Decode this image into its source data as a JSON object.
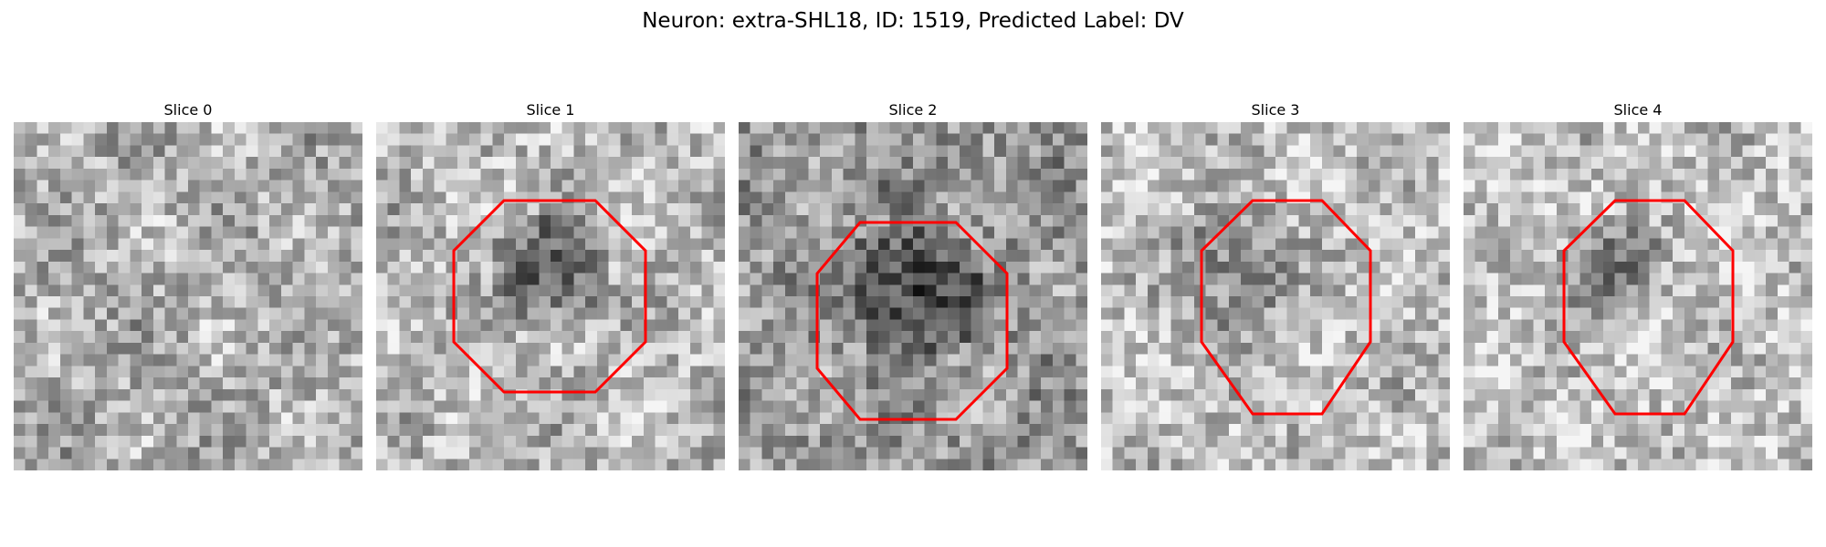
{
  "figure": {
    "title": "Neuron: extra-SHL18, ID: 1519, Predicted Label: DV"
  },
  "panels": [
    {
      "title": "Slice 0",
      "roi": false
    },
    {
      "title": "Slice 1",
      "roi": true
    },
    {
      "title": "Slice 2",
      "roi": true
    },
    {
      "title": "Slice 3",
      "roi": true
    },
    {
      "title": "Slice 4",
      "roi": true
    }
  ],
  "colors": {
    "roi_outline": "#ff0000",
    "background": "#ffffff"
  },
  "image_style": "grayscale microscopy patch"
}
